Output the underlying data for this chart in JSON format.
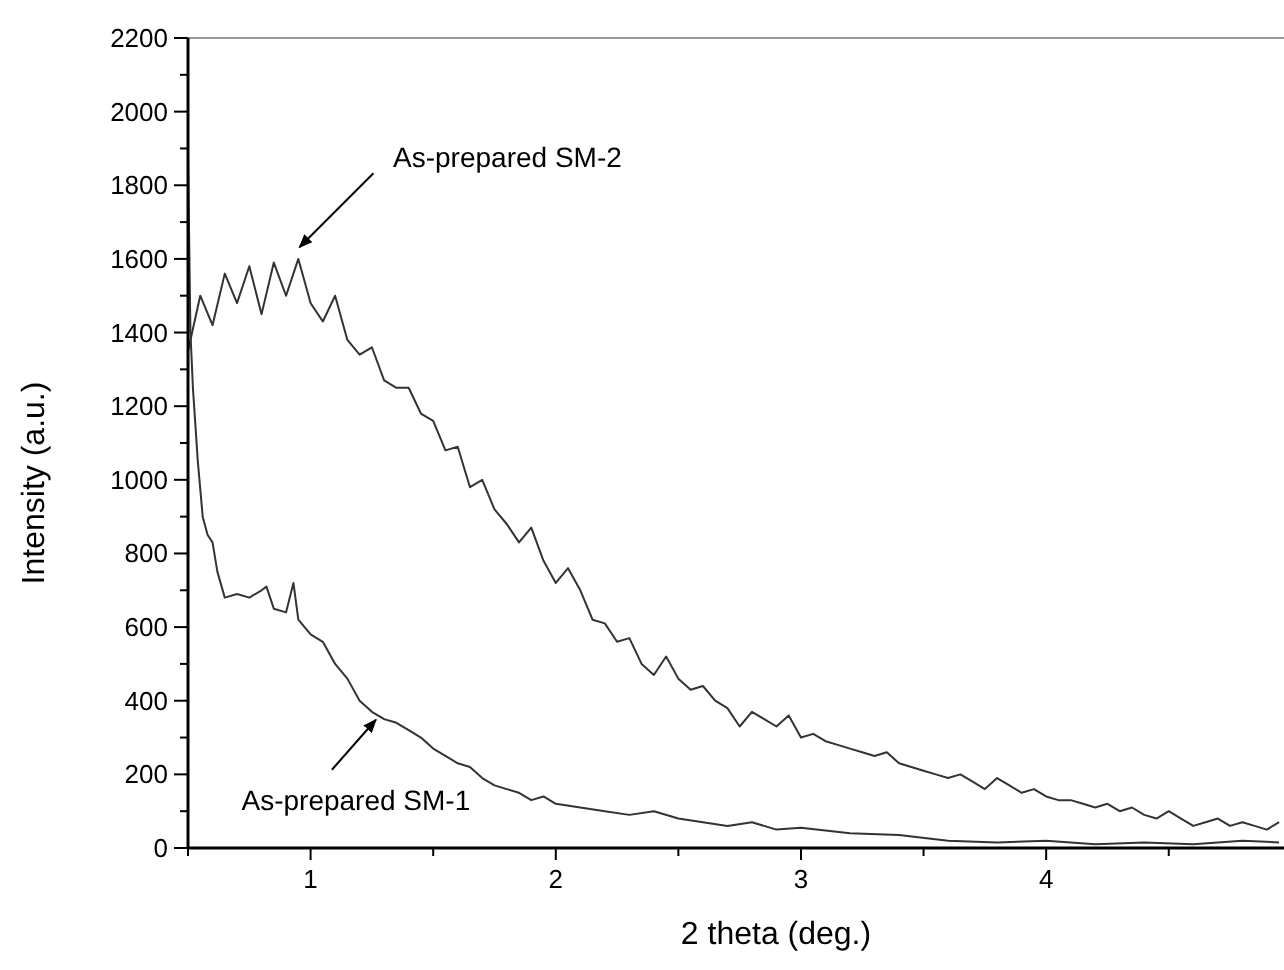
{
  "chart_data": {
    "type": "line",
    "xlabel": "2 theta (deg.)",
    "ylabel": "Intensity (a.u.)",
    "xlim": [
      0.5,
      4.97
    ],
    "xticks": [
      {
        "value": 0.5,
        "label": null
      },
      1,
      {
        "value": 1.5,
        "label": null
      },
      2,
      {
        "value": 2.5,
        "label": null
      },
      3,
      {
        "value": 3.5,
        "label": null
      },
      4,
      {
        "value": 4.5,
        "label": null
      }
    ],
    "ylim": [
      0,
      2200
    ],
    "yticks": [
      0,
      {
        "value": 100,
        "label": null
      },
      200,
      {
        "value": 300,
        "label": null
      },
      400,
      {
        "value": 500,
        "label": null
      },
      600,
      {
        "value": 700,
        "label": null
      },
      800,
      {
        "value": 900,
        "label": null
      },
      1000,
      {
        "value": 1100,
        "label": null
      },
      1200,
      {
        "value": 1300,
        "label": null
      },
      1400,
      {
        "value": 1500,
        "label": null
      },
      1600,
      {
        "value": 1700,
        "label": null
      },
      1800,
      {
        "value": 1900,
        "label": null
      },
      2000,
      {
        "value": 2100,
        "label": null
      },
      2200
    ],
    "grid": false,
    "marker": "none",
    "line_style": "solid",
    "series": [
      {
        "color": "#333333",
        "x": [
          0.5,
          0.55,
          0.6,
          0.65,
          0.7,
          0.75,
          0.8,
          0.85,
          0.9,
          0.95,
          1.0,
          1.05,
          1.1,
          1.15,
          1.2,
          1.25,
          1.3,
          1.35,
          1.4,
          1.45,
          1.5,
          1.55,
          1.6,
          1.65,
          1.7,
          1.75,
          1.8,
          1.85,
          1.9,
          1.95,
          2.0,
          2.05,
          2.1,
          2.15,
          2.2,
          2.25,
          2.3,
          2.35,
          2.4,
          2.45,
          2.5,
          2.55,
          2.6,
          2.65,
          2.7,
          2.75,
          2.8,
          2.85,
          2.9,
          2.95,
          3.0,
          3.05,
          3.1,
          3.15,
          3.2,
          3.25,
          3.3,
          3.35,
          3.4,
          3.45,
          3.5,
          3.55,
          3.6,
          3.65,
          3.7,
          3.75,
          3.8,
          3.85,
          3.9,
          3.95,
          4.0,
          4.05,
          4.1,
          4.15,
          4.2,
          4.25,
          4.3,
          4.35,
          4.4,
          4.45,
          4.5,
          4.55,
          4.6,
          4.65,
          4.7,
          4.75,
          4.8,
          4.85,
          4.9,
          4.95
        ],
        "values": [
          1350,
          1500,
          1420,
          1560,
          1480,
          1580,
          1450,
          1590,
          1500,
          1600,
          1480,
          1430,
          1500,
          1380,
          1340,
          1360,
          1270,
          1250,
          1250,
          1180,
          1160,
          1080,
          1090,
          980,
          1000,
          920,
          880,
          830,
          870,
          780,
          720,
          760,
          700,
          620,
          610,
          560,
          570,
          500,
          470,
          520,
          460,
          430,
          440,
          400,
          380,
          330,
          370,
          350,
          330,
          360,
          300,
          310,
          290,
          280,
          270,
          260,
          250,
          260,
          230,
          220,
          210,
          200,
          190,
          200,
          180,
          160,
          190,
          170,
          150,
          160,
          140,
          130,
          130,
          120,
          110,
          120,
          100,
          110,
          90,
          80,
          100,
          80,
          60,
          70,
          80,
          60,
          70,
          60,
          50,
          70
        ]
      },
      {
        "color": "#333333",
        "x": [
          0.5,
          0.51,
          0.52,
          0.54,
          0.56,
          0.58,
          0.6,
          0.62,
          0.65,
          0.7,
          0.75,
          0.8,
          0.82,
          0.85,
          0.9,
          0.93,
          0.95,
          1.0,
          1.05,
          1.1,
          1.15,
          1.2,
          1.25,
          1.3,
          1.35,
          1.4,
          1.45,
          1.5,
          1.55,
          1.6,
          1.65,
          1.7,
          1.75,
          1.8,
          1.85,
          1.9,
          1.95,
          2.0,
          2.1,
          2.2,
          2.3,
          2.4,
          2.5,
          2.6,
          2.7,
          2.8,
          2.9,
          3.0,
          3.2,
          3.4,
          3.6,
          3.8,
          4.0,
          4.2,
          4.4,
          4.6,
          4.8,
          4.95
        ],
        "values": [
          1880,
          1400,
          1250,
          1050,
          900,
          850,
          830,
          750,
          680,
          690,
          680,
          700,
          710,
          650,
          640,
          720,
          620,
          580,
          560,
          500,
          460,
          400,
          370,
          350,
          340,
          320,
          300,
          270,
          250,
          230,
          220,
          190,
          170,
          160,
          150,
          130,
          140,
          120,
          110,
          100,
          90,
          100,
          80,
          70,
          60,
          70,
          50,
          55,
          40,
          35,
          20,
          15,
          20,
          10,
          15,
          10,
          20,
          15
        ]
      }
    ],
    "annotations": [
      {
        "text": "As-prepared SM-2",
        "x": 0.93,
        "y": 1610
      },
      {
        "text": "As-prepared SM-1",
        "x": 1.25,
        "y": 370
      }
    ]
  }
}
